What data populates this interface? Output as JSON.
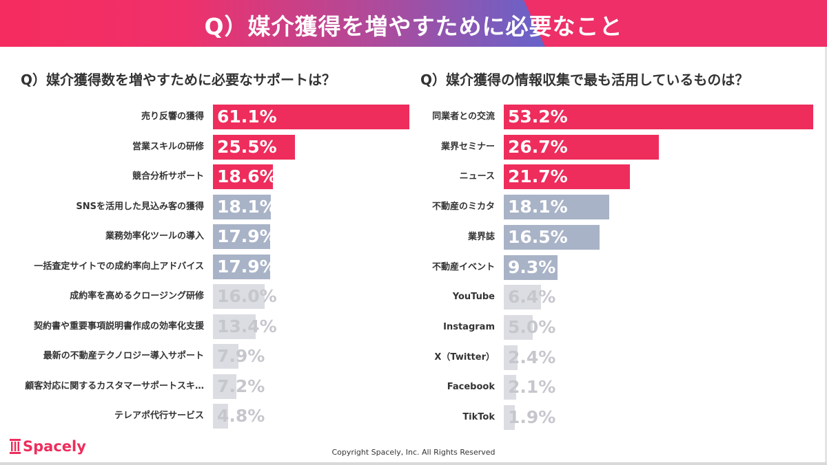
{
  "header": {
    "title": "Q）媒介獲得を増やすために必要なこと"
  },
  "colors": {
    "pink": "#ee2d5c",
    "slate": "#a9b3c7",
    "light": "#dcdde2",
    "light_text": "#c6c7cd"
  },
  "left": {
    "question": "Q）媒介獲得数を増やすために必要なサポートは？",
    "rows": [
      {
        "label": "売り反響の獲得",
        "value": "61.1%",
        "pct": 61.1,
        "tone": "pink"
      },
      {
        "label": "営業スキルの研修",
        "value": "25.5%",
        "pct": 25.5,
        "tone": "pink"
      },
      {
        "label": "競合分析サポート",
        "value": "18.6%",
        "pct": 18.6,
        "tone": "pink"
      },
      {
        "label": "SNSを活用した見込み客の獲得",
        "value": "18.1%",
        "pct": 18.1,
        "tone": "slate"
      },
      {
        "label": "業務効率化ツールの導入",
        "value": "17.9%",
        "pct": 17.9,
        "tone": "slate"
      },
      {
        "label": "一括査定サイトでの成約率向上アドバイス",
        "value": "17.9%",
        "pct": 17.9,
        "tone": "slate"
      },
      {
        "label": "成約率を高めるクロージング研修",
        "value": "16.0%",
        "pct": 16.0,
        "tone": "light"
      },
      {
        "label": "契約書や重要事項説明書作成の効率化支援",
        "value": "13.4%",
        "pct": 13.4,
        "tone": "light"
      },
      {
        "label": "最新の不動産テクノロジー導入サポート",
        "value": "7.9%",
        "pct": 7.9,
        "tone": "light"
      },
      {
        "label": "顧客対応に関するカスタマーサポートスキ…",
        "value": "7.2%",
        "pct": 7.2,
        "tone": "light"
      },
      {
        "label": "テレアポ代行サービス",
        "value": "4.8%",
        "pct": 4.8,
        "tone": "light"
      }
    ]
  },
  "right": {
    "question": "Q）媒介獲得の情報収集で最も活用しているものは？",
    "rows": [
      {
        "label": "同業者との交流",
        "value": "53.2%",
        "pct": 53.2,
        "tone": "pink"
      },
      {
        "label": "業界セミナー",
        "value": "26.7%",
        "pct": 26.7,
        "tone": "pink"
      },
      {
        "label": "ニュース",
        "value": "21.7%",
        "pct": 21.7,
        "tone": "pink"
      },
      {
        "label": "不動産のミカタ",
        "value": "18.1%",
        "pct": 18.1,
        "tone": "slate"
      },
      {
        "label": "業界誌",
        "value": "16.5%",
        "pct": 16.5,
        "tone": "slate"
      },
      {
        "label": "不動産イベント",
        "value": "9.3%",
        "pct": 9.3,
        "tone": "slate"
      },
      {
        "label": "YouTube",
        "value": "6.4%",
        "pct": 6.4,
        "tone": "light"
      },
      {
        "label": "Instagram",
        "value": "5.0%",
        "pct": 5.0,
        "tone": "light"
      },
      {
        "label": "X（Twitter）",
        "value": "2.4%",
        "pct": 2.4,
        "tone": "light"
      },
      {
        "label": "Facebook",
        "value": "2.1%",
        "pct": 2.1,
        "tone": "light"
      },
      {
        "label": "TikTok",
        "value": "1.9%",
        "pct": 1.9,
        "tone": "light"
      }
    ]
  },
  "footer": {
    "logo": "Spacely",
    "copyright": "Copyright Spacely, Inc. All Rights Reserved"
  }
}
